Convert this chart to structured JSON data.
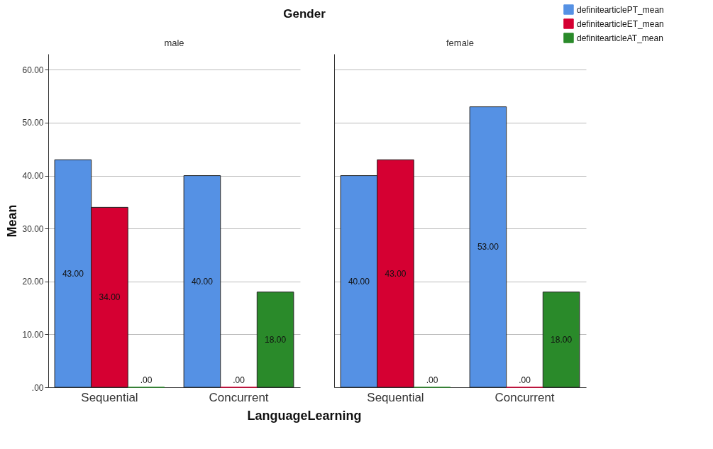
{
  "chart_data": [
    {
      "type": "bar",
      "title": "Gender",
      "subtitle": "male",
      "ylabel": "Mean",
      "categories": [
        "Sequential",
        "Concurrent"
      ],
      "ylim": [
        0,
        63
      ],
      "yticks": [
        {
          "value": 0,
          "label": ".00"
        },
        {
          "value": 10,
          "label": "10.00"
        },
        {
          "value": 20,
          "label": "20.00"
        },
        {
          "value": 30,
          "label": "30.00"
        },
        {
          "value": 40,
          "label": "40.00"
        },
        {
          "value": 50,
          "label": "50.00"
        },
        {
          "value": 60,
          "label": "60.00"
        }
      ],
      "grid": "y",
      "legend": "top right",
      "series": [
        {
          "name": "definitearticlePT_mean",
          "color": "#5591e4",
          "values": [
            43,
            40
          ],
          "value_labels": [
            "43.00",
            "40.00"
          ]
        },
        {
          "name": "definitearticleET_mean",
          "color": "#d50032",
          "values": [
            34,
            0
          ],
          "value_labels": [
            "34.00",
            ".00"
          ]
        },
        {
          "name": "definitearticleAT_mean",
          "color": "#2a8a2a",
          "values": [
            0,
            18
          ],
          "value_labels": [
            ".00",
            "18.00"
          ]
        }
      ]
    },
    {
      "type": "bar",
      "subtitle": "female",
      "xlabel": "LanguageLearning",
      "categories": [
        "Sequential",
        "Concurrent"
      ],
      "ylim": [
        0,
        63
      ],
      "yticks": [
        0,
        10,
        20,
        30,
        40,
        50,
        60
      ],
      "tick_labels": "x",
      "grid": "y",
      "series": [
        {
          "name": "definitearticlePT_mean",
          "color": "#5591e4",
          "values": [
            40,
            53
          ],
          "value_labels": [
            "40.00",
            "53.00"
          ]
        },
        {
          "name": "definitearticleET_mean",
          "color": "#d50032",
          "values": [
            43,
            0
          ],
          "value_labels": [
            "43.00",
            ".00"
          ]
        },
        {
          "name": "definitearticleAT_mean",
          "color": "#2a8a2a",
          "values": [
            0,
            18
          ],
          "value_labels": [
            ".00",
            "18.00"
          ]
        }
      ]
    }
  ]
}
